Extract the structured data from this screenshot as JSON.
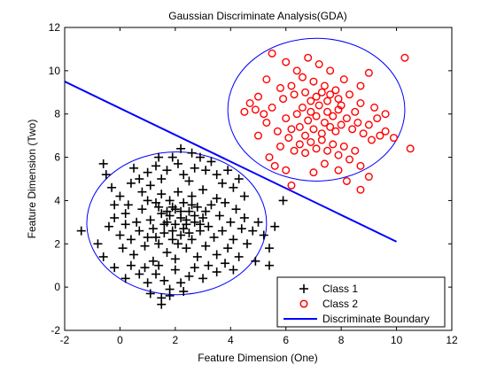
{
  "chart_data": {
    "type": "scatter",
    "title": "Gaussian Discriminate Analysis(GDA)",
    "xlabel": "Feature Dimension (One)",
    "ylabel": "Feature Dimension (Two)",
    "xlim": [
      -2,
      12
    ],
    "ylim": [
      -2,
      12
    ],
    "xticks": [
      "-2",
      "0",
      "2",
      "4",
      "6",
      "8",
      "10",
      "12"
    ],
    "yticks": [
      "-2",
      "0",
      "2",
      "4",
      "6",
      "8",
      "10",
      "12"
    ],
    "grid": false,
    "legend_position": "bottom-right",
    "series": [
      {
        "name": "Class 1",
        "marker": "plus",
        "color": "#000000",
        "note_center": [
          2.0,
          3.0
        ],
        "points": [
          [
            -0.6,
            5.7
          ],
          [
            -0.5,
            5.2
          ],
          [
            -0.3,
            4.6
          ],
          [
            -0.2,
            3.8
          ],
          [
            0.0,
            4.2
          ],
          [
            0.2,
            3.4
          ],
          [
            0.4,
            4.8
          ],
          [
            0.5,
            5.5
          ],
          [
            0.7,
            5.0
          ],
          [
            0.8,
            4.4
          ],
          [
            1.0,
            5.3
          ],
          [
            1.1,
            4.7
          ],
          [
            1.3,
            5.6
          ],
          [
            1.5,
            5.0
          ],
          [
            1.7,
            5.4
          ],
          [
            1.9,
            6.0
          ],
          [
            2.1,
            5.7
          ],
          [
            2.3,
            5.2
          ],
          [
            2.5,
            4.9
          ],
          [
            2.7,
            5.5
          ],
          [
            2.9,
            6.0
          ],
          [
            3.1,
            5.4
          ],
          [
            3.3,
            5.8
          ],
          [
            3.5,
            5.2
          ],
          [
            3.7,
            4.8
          ],
          [
            3.9,
            5.4
          ],
          [
            4.1,
            4.6
          ],
          [
            4.3,
            5.0
          ],
          [
            4.5,
            4.2
          ],
          [
            2.2,
            6.4
          ],
          [
            2.6,
            6.2
          ],
          [
            1.4,
            6.0
          ],
          [
            -1.4,
            2.6
          ],
          [
            -0.8,
            2.0
          ],
          [
            -0.6,
            1.4
          ],
          [
            -0.4,
            2.8
          ],
          [
            -0.2,
            3.2
          ],
          [
            0.0,
            2.4
          ],
          [
            0.1,
            1.8
          ],
          [
            0.2,
            2.9
          ],
          [
            0.3,
            3.8
          ],
          [
            0.4,
            2.2
          ],
          [
            0.5,
            1.5
          ],
          [
            0.6,
            3.0
          ],
          [
            0.7,
            2.6
          ],
          [
            0.8,
            3.6
          ],
          [
            0.9,
            1.9
          ],
          [
            1.0,
            4.0
          ],
          [
            1.0,
            2.3
          ],
          [
            1.1,
            3.1
          ],
          [
            1.2,
            1.2
          ],
          [
            1.2,
            2.7
          ],
          [
            1.3,
            3.9
          ],
          [
            1.4,
            2.0
          ],
          [
            1.5,
            3.4
          ],
          [
            1.5,
            4.3
          ],
          [
            1.6,
            2.5
          ],
          [
            1.7,
            1.6
          ],
          [
            1.7,
            3.0
          ],
          [
            1.8,
            4.0
          ],
          [
            1.9,
            2.2
          ],
          [
            1.9,
            3.7
          ],
          [
            2.0,
            2.9
          ],
          [
            2.0,
            1.3
          ],
          [
            2.1,
            4.4
          ],
          [
            2.2,
            3.2
          ],
          [
            2.2,
            2.4
          ],
          [
            2.3,
            3.9
          ],
          [
            2.4,
            1.8
          ],
          [
            2.4,
            2.9
          ],
          [
            2.5,
            3.5
          ],
          [
            2.6,
            4.2
          ],
          [
            2.6,
            2.2
          ],
          [
            2.7,
            3.0
          ],
          [
            2.8,
            1.4
          ],
          [
            2.8,
            3.7
          ],
          [
            2.9,
            2.6
          ],
          [
            3.0,
            4.5
          ],
          [
            3.0,
            3.2
          ],
          [
            3.1,
            1.9
          ],
          [
            3.2,
            2.8
          ],
          [
            3.3,
            3.8
          ],
          [
            3.4,
            2.3
          ],
          [
            3.5,
            4.1
          ],
          [
            3.5,
            1.5
          ],
          [
            3.6,
            3.3
          ],
          [
            3.7,
            2.6
          ],
          [
            3.8,
            3.9
          ],
          [
            3.9,
            1.8
          ],
          [
            4.0,
            3.0
          ],
          [
            4.1,
            2.2
          ],
          [
            4.2,
            3.6
          ],
          [
            4.3,
            1.4
          ],
          [
            4.4,
            2.7
          ],
          [
            4.5,
            3.2
          ],
          [
            4.6,
            2.0
          ],
          [
            4.8,
            2.6
          ],
          [
            5.0,
            3.0
          ],
          [
            5.2,
            2.4
          ],
          [
            5.4,
            1.8
          ],
          [
            5.6,
            2.8
          ],
          [
            5.9,
            4.0
          ],
          [
            4.9,
            1.2
          ],
          [
            5.4,
            1.0
          ],
          [
            0.9,
            0.9
          ],
          [
            1.3,
            0.6
          ],
          [
            1.6,
            0.3
          ],
          [
            1.8,
            -0.1
          ],
          [
            2.0,
            0.8
          ],
          [
            2.2,
            0.2
          ],
          [
            2.5,
            0.5
          ],
          [
            2.7,
            0.9
          ],
          [
            3.0,
            0.4
          ],
          [
            3.2,
            1.0
          ],
          [
            3.5,
            0.7
          ],
          [
            3.8,
            1.1
          ],
          [
            4.1,
            0.8
          ],
          [
            1.0,
            0.2
          ],
          [
            0.7,
            0.6
          ],
          [
            1.4,
            1.0
          ],
          [
            -0.2,
            0.9
          ],
          [
            0.2,
            0.4
          ],
          [
            0.4,
            1.0
          ],
          [
            1.1,
            -0.3
          ],
          [
            1.5,
            -0.5
          ],
          [
            1.5,
            -0.8
          ],
          [
            1.8,
            -0.4
          ],
          [
            2.3,
            -0.2
          ],
          [
            1.9,
            2.6
          ],
          [
            2.1,
            2.0
          ],
          [
            1.8,
            3.3
          ],
          [
            2.4,
            3.1
          ],
          [
            2.0,
            3.6
          ],
          [
            2.3,
            2.7
          ],
          [
            1.6,
            2.9
          ],
          [
            2.7,
            3.3
          ],
          [
            1.4,
            3.7
          ],
          [
            2.9,
            2.9
          ],
          [
            1.3,
            2.3
          ],
          [
            2.5,
            2.5
          ],
          [
            2.2,
            3.5
          ],
          [
            1.7,
            3.5
          ],
          [
            2.6,
            3.8
          ],
          [
            3.1,
            3.5
          ]
        ]
      },
      {
        "name": "Class 2",
        "marker": "circle",
        "color": "#ff0000",
        "points": [
          [
            5.5,
            10.8
          ],
          [
            6.0,
            10.4
          ],
          [
            6.4,
            10.0
          ],
          [
            6.8,
            10.6
          ],
          [
            7.2,
            10.3
          ],
          [
            7.6,
            10.0
          ],
          [
            8.1,
            9.6
          ],
          [
            8.7,
            9.3
          ],
          [
            9.0,
            9.9
          ],
          [
            10.3,
            10.6
          ],
          [
            6.6,
            9.7
          ],
          [
            7.0,
            9.5
          ],
          [
            7.4,
            9.3
          ],
          [
            7.8,
            9.1
          ],
          [
            6.2,
            9.3
          ],
          [
            5.8,
            9.2
          ],
          [
            5.3,
            9.6
          ],
          [
            5.0,
            8.8
          ],
          [
            4.7,
            8.5
          ],
          [
            4.9,
            8.2
          ],
          [
            5.2,
            8.0
          ],
          [
            5.5,
            8.3
          ],
          [
            5.9,
            8.7
          ],
          [
            6.3,
            8.9
          ],
          [
            6.7,
            9.0
          ],
          [
            7.1,
            8.8
          ],
          [
            7.5,
            8.6
          ],
          [
            7.9,
            8.7
          ],
          [
            8.3,
            8.9
          ],
          [
            8.7,
            8.5
          ],
          [
            9.2,
            8.3
          ],
          [
            9.6,
            8.0
          ],
          [
            5.3,
            7.6
          ],
          [
            5.7,
            7.2
          ],
          [
            6.0,
            7.8
          ],
          [
            6.2,
            7.3
          ],
          [
            6.4,
            8.0
          ],
          [
            6.5,
            7.4
          ],
          [
            6.6,
            8.3
          ],
          [
            6.7,
            7.0
          ],
          [
            6.8,
            7.7
          ],
          [
            6.9,
            8.1
          ],
          [
            7.0,
            7.3
          ],
          [
            7.1,
            7.9
          ],
          [
            7.2,
            8.4
          ],
          [
            7.3,
            7.1
          ],
          [
            7.4,
            7.6
          ],
          [
            7.5,
            8.1
          ],
          [
            7.6,
            7.4
          ],
          [
            7.7,
            7.9
          ],
          [
            7.8,
            7.2
          ],
          [
            7.9,
            8.2
          ],
          [
            8.0,
            7.5
          ],
          [
            8.2,
            7.8
          ],
          [
            8.4,
            7.3
          ],
          [
            8.6,
            7.6
          ],
          [
            8.8,
            7.1
          ],
          [
            9.0,
            7.5
          ],
          [
            9.3,
            7.8
          ],
          [
            9.6,
            7.2
          ],
          [
            5.8,
            6.5
          ],
          [
            6.1,
            6.9
          ],
          [
            6.3,
            6.3
          ],
          [
            6.5,
            6.6
          ],
          [
            6.7,
            6.2
          ],
          [
            6.9,
            6.7
          ],
          [
            7.1,
            6.4
          ],
          [
            7.3,
            6.8
          ],
          [
            7.5,
            6.3
          ],
          [
            7.7,
            6.6
          ],
          [
            7.9,
            6.1
          ],
          [
            8.1,
            6.5
          ],
          [
            8.3,
            5.9
          ],
          [
            8.5,
            6.3
          ],
          [
            8.7,
            5.6
          ],
          [
            9.1,
            6.8
          ],
          [
            9.4,
            7.0
          ],
          [
            9.9,
            6.9
          ],
          [
            5.4,
            6.0
          ],
          [
            5.6,
            5.6
          ],
          [
            6.0,
            5.4
          ],
          [
            6.2,
            4.7
          ],
          [
            7.0,
            5.3
          ],
          [
            7.4,
            5.7
          ],
          [
            7.9,
            5.4
          ],
          [
            8.2,
            4.9
          ],
          [
            8.7,
            4.5
          ],
          [
            9.0,
            5.1
          ],
          [
            10.5,
            6.4
          ],
          [
            5.0,
            7.0
          ],
          [
            4.5,
            8.1
          ],
          [
            6.9,
            8.6
          ],
          [
            7.3,
            9.0
          ],
          [
            7.6,
            8.9
          ],
          [
            8.0,
            8.4
          ],
          [
            8.5,
            8.1
          ]
        ]
      },
      {
        "name": "Discriminate Boundary",
        "type": "line",
        "color": "#0000ff",
        "x": [
          -2,
          10
        ],
        "y": [
          9.5,
          2.1
        ]
      }
    ],
    "annotations": [
      {
        "type": "ellipse",
        "role": "contour",
        "color": "#0000ff",
        "center": [
          2.05,
          2.95
        ],
        "rx": 3.25,
        "ry": 3.3
      },
      {
        "type": "ellipse",
        "role": "contour",
        "color": "#0000ff",
        "center": [
          7.1,
          8.2
        ],
        "rx": 3.2,
        "ry": 3.3
      }
    ]
  }
}
